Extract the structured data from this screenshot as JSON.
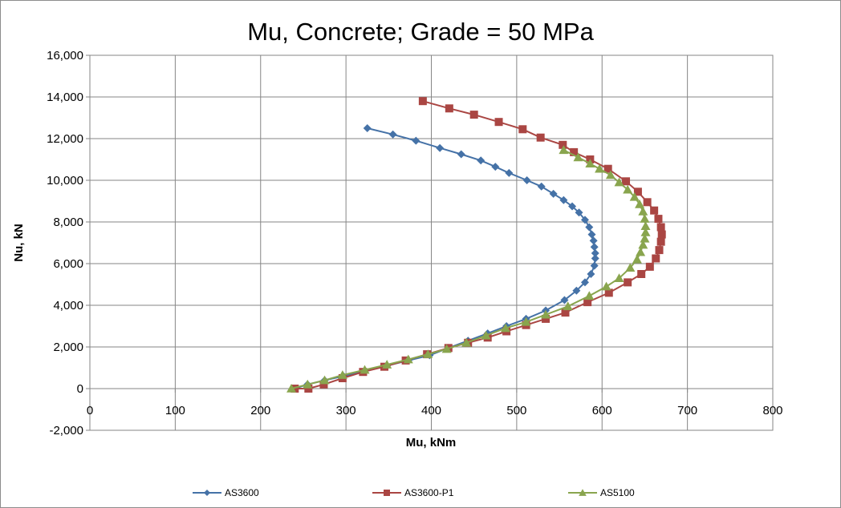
{
  "chart_data": {
    "type": "scatter",
    "title": "Mu, Concrete; Grade = 50 MPa",
    "xlabel": "Mu, kNm",
    "ylabel": "Nu, kN",
    "xlim": [
      0,
      800
    ],
    "ylim": [
      -2000,
      16000
    ],
    "x_ticks": [
      "0",
      "100",
      "200",
      "300",
      "400",
      "500",
      "600",
      "700",
      "800"
    ],
    "y_ticks": [
      "-2,000",
      "0",
      "2,000",
      "4,000",
      "6,000",
      "8,000",
      "10,000",
      "12,000",
      "14,000",
      "16,000"
    ],
    "grid": true,
    "legend_position": "bottom",
    "series": [
      {
        "name": "AS3600",
        "color": "#4572A7",
        "marker": "diamond",
        "points": [
          [
            240,
            0
          ],
          [
            255,
            200
          ],
          [
            275,
            400
          ],
          [
            297,
            600
          ],
          [
            322,
            850
          ],
          [
            348,
            1100
          ],
          [
            373,
            1350
          ],
          [
            398,
            1600
          ],
          [
            420,
            1950
          ],
          [
            443,
            2300
          ],
          [
            466,
            2650
          ],
          [
            488,
            3000
          ],
          [
            511,
            3350
          ],
          [
            534,
            3750
          ],
          [
            556,
            4250
          ],
          [
            570,
            4700
          ],
          [
            580,
            5100
          ],
          [
            587,
            5500
          ],
          [
            591,
            5900
          ],
          [
            592,
            6250
          ],
          [
            592,
            6500
          ],
          [
            591,
            6800
          ],
          [
            590,
            7100
          ],
          [
            588,
            7400
          ],
          [
            585,
            7750
          ],
          [
            580,
            8100
          ],
          [
            573,
            8450
          ],
          [
            565,
            8750
          ],
          [
            555,
            9050
          ],
          [
            543,
            9350
          ],
          [
            529,
            9700
          ],
          [
            512,
            10000
          ],
          [
            491,
            10350
          ],
          [
            475,
            10650
          ],
          [
            458,
            10950
          ],
          [
            435,
            11250
          ],
          [
            410,
            11550
          ],
          [
            382,
            11900
          ],
          [
            355,
            12200
          ],
          [
            325,
            12500
          ]
        ]
      },
      {
        "name": "AS3600-P1",
        "color": "#AA4643",
        "marker": "square",
        "points": [
          [
            240,
            0
          ],
          [
            256,
            0
          ],
          [
            274,
            200
          ],
          [
            296,
            500
          ],
          [
            320,
            800
          ],
          [
            345,
            1050
          ],
          [
            370,
            1350
          ],
          [
            395,
            1650
          ],
          [
            420,
            1950
          ],
          [
            443,
            2200
          ],
          [
            466,
            2450
          ],
          [
            488,
            2750
          ],
          [
            511,
            3050
          ],
          [
            534,
            3350
          ],
          [
            557,
            3650
          ],
          [
            583,
            4150
          ],
          [
            608,
            4600
          ],
          [
            630,
            5100
          ],
          [
            646,
            5500
          ],
          [
            656,
            5850
          ],
          [
            663,
            6250
          ],
          [
            667,
            6650
          ],
          [
            669,
            7050
          ],
          [
            670,
            7400
          ],
          [
            669,
            7750
          ],
          [
            666,
            8150
          ],
          [
            661,
            8550
          ],
          [
            653,
            8950
          ],
          [
            642,
            9450
          ],
          [
            628,
            9950
          ],
          [
            607,
            10550
          ],
          [
            586,
            11000
          ],
          [
            567,
            11350
          ],
          [
            554,
            11700
          ],
          [
            528,
            12050
          ],
          [
            507,
            12450
          ],
          [
            479,
            12800
          ],
          [
            450,
            13150
          ],
          [
            421,
            13450
          ],
          [
            390,
            13800
          ]
        ]
      },
      {
        "name": "AS5100",
        "color": "#89A54E",
        "marker": "triangle",
        "points": [
          [
            236,
            0
          ],
          [
            255,
            200
          ],
          [
            275,
            400
          ],
          [
            296,
            650
          ],
          [
            322,
            900
          ],
          [
            348,
            1150
          ],
          [
            373,
            1400
          ],
          [
            396,
            1650
          ],
          [
            418,
            1900
          ],
          [
            441,
            2200
          ],
          [
            464,
            2550
          ],
          [
            487,
            2900
          ],
          [
            511,
            3200
          ],
          [
            534,
            3550
          ],
          [
            560,
            3950
          ],
          [
            585,
            4450
          ],
          [
            605,
            4900
          ],
          [
            620,
            5300
          ],
          [
            633,
            5800
          ],
          [
            641,
            6200
          ],
          [
            645,
            6550
          ],
          [
            648,
            6900
          ],
          [
            650,
            7200
          ],
          [
            651,
            7500
          ],
          [
            651,
            7800
          ],
          [
            650,
            8150
          ],
          [
            648,
            8500
          ],
          [
            644,
            8850
          ],
          [
            638,
            9200
          ],
          [
            630,
            9550
          ],
          [
            620,
            9900
          ],
          [
            610,
            10250
          ],
          [
            597,
            10550
          ],
          [
            586,
            10800
          ],
          [
            572,
            11100
          ],
          [
            555,
            11450
          ]
        ]
      }
    ]
  }
}
